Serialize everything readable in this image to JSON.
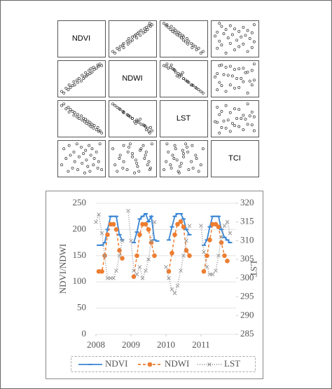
{
  "chart_data": [
    {
      "type": "scatter_matrix",
      "variables": [
        {
          "name": "NDVI",
          "values": [
            0.05,
            0.1,
            0.15,
            0.2,
            0.22,
            0.25,
            0.3,
            0.33,
            0.35,
            0.4,
            0.42,
            0.45,
            0.5,
            0.52,
            0.55,
            0.58,
            0.6,
            0.62,
            0.65,
            0.68,
            0.7,
            0.72,
            0.75,
            0.78,
            0.8,
            0.85,
            0.88,
            0.9,
            0.93,
            0.97
          ]
        },
        {
          "name": "NDWI",
          "values": [
            0.1,
            0.05,
            0.2,
            0.15,
            0.3,
            0.22,
            0.28,
            0.4,
            0.3,
            0.45,
            0.38,
            0.5,
            0.42,
            0.6,
            0.5,
            0.55,
            0.68,
            0.58,
            0.62,
            0.75,
            0.65,
            0.8,
            0.7,
            0.85,
            0.78,
            0.82,
            0.92,
            0.88,
            0.95,
            0.9
          ]
        },
        {
          "name": "LST",
          "values": [
            0.9,
            0.95,
            0.8,
            0.85,
            0.7,
            0.78,
            0.72,
            0.6,
            0.68,
            0.55,
            0.62,
            0.5,
            0.58,
            0.45,
            0.5,
            0.4,
            0.48,
            0.35,
            0.42,
            0.3,
            0.38,
            0.25,
            0.32,
            0.2,
            0.28,
            0.15,
            0.22,
            0.1,
            0.12,
            0.05
          ]
        },
        {
          "name": "TCI",
          "values": [
            0.3,
            0.8,
            0.5,
            0.1,
            0.9,
            0.6,
            0.2,
            0.7,
            0.4,
            0.95,
            0.15,
            0.55,
            0.85,
            0.35,
            0.65,
            0.05,
            0.75,
            0.45,
            0.25,
            0.9,
            0.1,
            0.6,
            0.8,
            0.3,
            0.5,
            0.7,
            0.2,
            0.4,
            0.95,
            0.15
          ]
        }
      ],
      "xlim": [
        0,
        1
      ],
      "ylim": [
        0,
        1
      ]
    },
    {
      "type": "line",
      "y_label": "NDVI/NDWI",
      "y2_label": "LST",
      "x": [
        2008,
        2008.08,
        2008.17,
        2008.25,
        2008.33,
        2008.42,
        2008.5,
        2008.58,
        2008.67,
        2008.75,
        2008.83,
        2008.92,
        2009,
        2009.08,
        2009.17,
        2009.25,
        2009.33,
        2009.42,
        2009.5,
        2009.58,
        2009.67,
        2009.75,
        2009.83,
        2009.92,
        2010,
        2010.08,
        2010.17,
        2010.25,
        2010.33,
        2010.42,
        2010.5,
        2010.58,
        2010.67,
        2010.75,
        2010.83,
        2010.92,
        2011,
        2011.08,
        2011.17,
        2011.25,
        2011.33,
        2011.42,
        2011.5,
        2011.58,
        2011.67,
        2011.75,
        2011.83,
        2011.92
      ],
      "series": [
        {
          "name": "NDVI",
          "color": "#3a86d4",
          "marker": "dash",
          "dash": "none",
          "values": [
            null,
            170,
            170,
            175,
            200,
            225,
            225,
            225,
            190,
            180,
            null,
            null,
            null,
            175,
            195,
            220,
            225,
            230,
            215,
            225,
            180,
            178,
            null,
            null,
            null,
            180,
            205,
            225,
            230,
            230,
            220,
            200,
            190,
            null,
            null,
            null,
            null,
            170,
            180,
            205,
            225,
            225,
            225,
            200,
            185,
            180,
            175,
            null
          ]
        },
        {
          "name": "NDWI",
          "color": "#ed7d31",
          "marker": "circle",
          "dash": "4 3",
          "values": [
            null,
            120,
            120,
            150,
            190,
            210,
            210,
            200,
            160,
            145,
            null,
            null,
            null,
            110,
            150,
            190,
            210,
            210,
            200,
            175,
            150,
            null,
            null,
            null,
            null,
            120,
            155,
            190,
            210,
            215,
            205,
            160,
            150,
            null,
            null,
            null,
            null,
            120,
            150,
            180,
            210,
            210,
            205,
            175,
            150,
            140,
            null,
            null
          ]
        },
        {
          "name": "LST",
          "color": "#999999",
          "marker": "cross",
          "dash": "1 2",
          "axis": "y2",
          "values": [
            315,
            317,
            312,
            306,
            300,
            300,
            300,
            302,
            306,
            310,
            null,
            318,
            310,
            302,
            301,
            303,
            300,
            302,
            305,
            310,
            315,
            null,
            null,
            null,
            303,
            300,
            297,
            296,
            298,
            302,
            306,
            310,
            314,
            null,
            null,
            null,
            314,
            307,
            303,
            301,
            301,
            302,
            306,
            311,
            314,
            315,
            312,
            null
          ]
        }
      ],
      "xlim": [
        2008,
        2012
      ],
      "xticks": [
        2008,
        2009,
        2010,
        2011
      ],
      "ylim": [
        0,
        250
      ],
      "yticks": [
        0,
        50,
        100,
        150,
        200,
        250
      ],
      "y2lim": [
        285,
        320
      ],
      "y2ticks": [
        285,
        290,
        295,
        300,
        305,
        310,
        315,
        320
      ],
      "grid": true,
      "legend": "bottom"
    }
  ]
}
